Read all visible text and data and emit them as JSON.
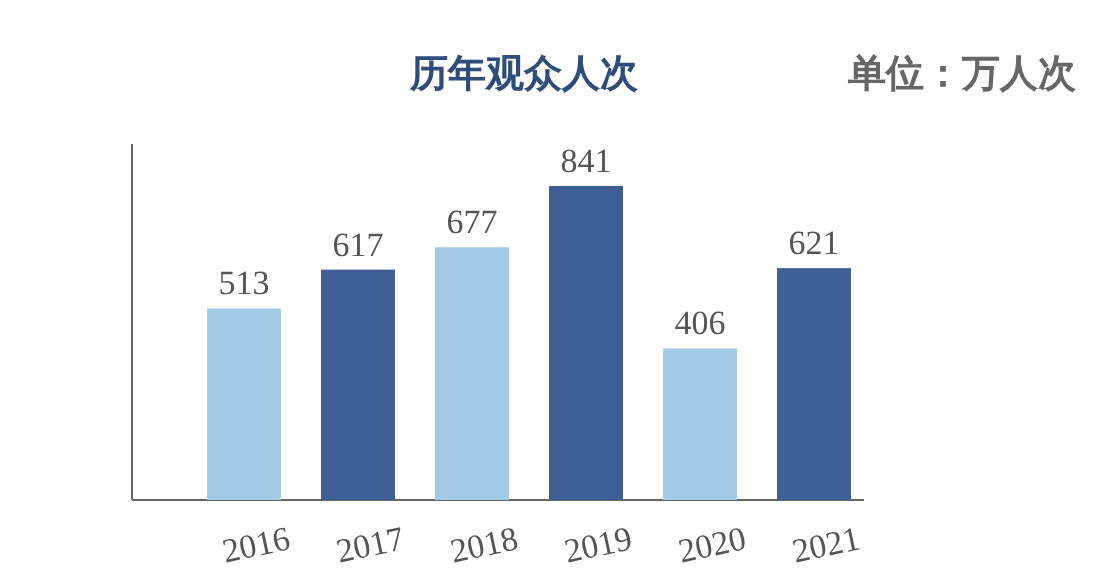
{
  "chart_data": {
    "type": "bar",
    "title": "历年观众人次",
    "annotations": [
      "单位：万人次"
    ],
    "categories": [
      "2016",
      "2017",
      "2018",
      "2019",
      "2020",
      "2021"
    ],
    "values": [
      513,
      617,
      677,
      841,
      406,
      621
    ],
    "colors": [
      "#a3cbe6",
      "#3d5f96",
      "#a3cbe6",
      "#3d5f96",
      "#a3cbe6",
      "#3d5f96"
    ],
    "data_labels": true
  }
}
